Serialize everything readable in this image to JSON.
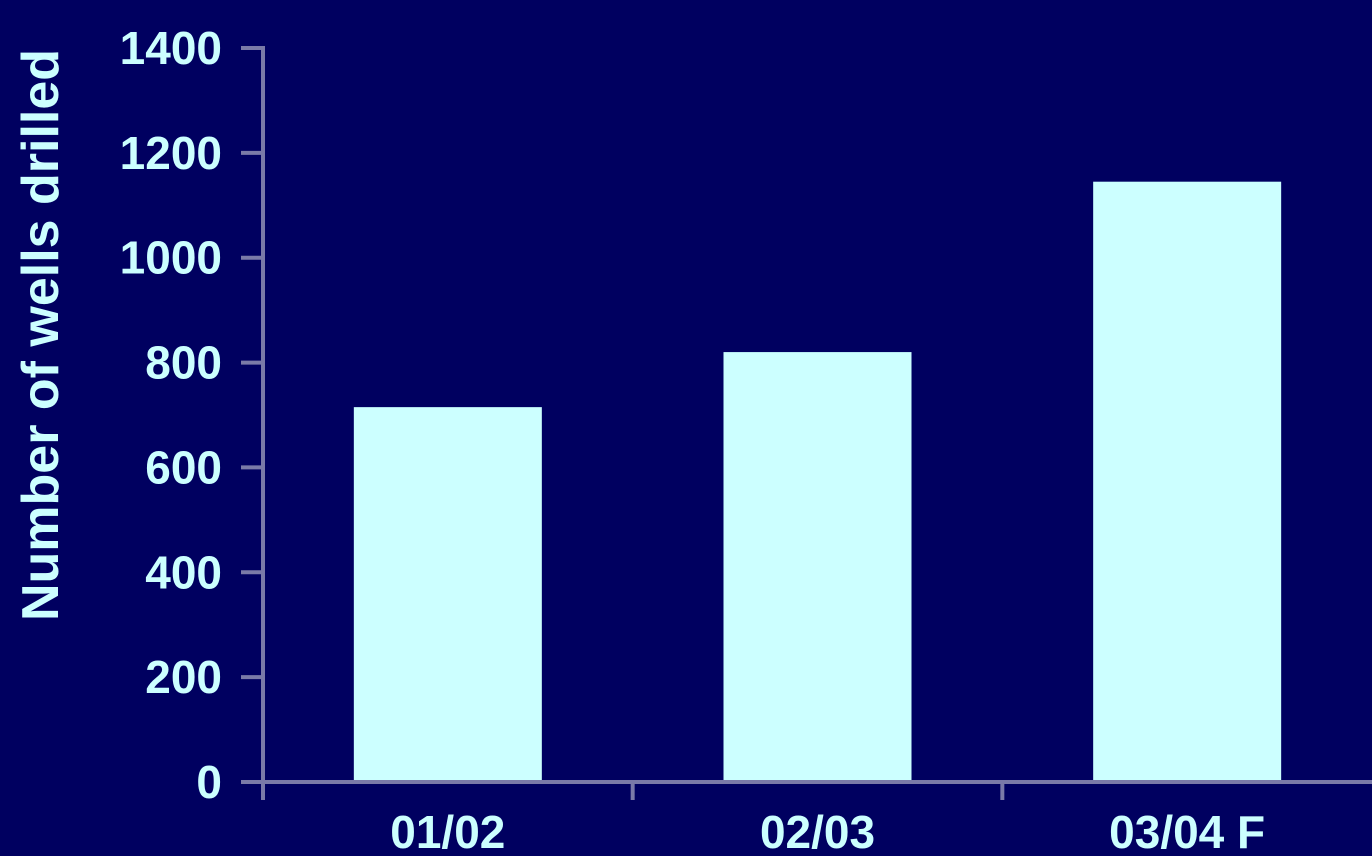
{
  "chart_data": {
    "type": "bar",
    "title": "",
    "xlabel": "",
    "ylabel": "Number of wells drilled",
    "categories": [
      "01/02",
      "02/03",
      "03/04 F"
    ],
    "values": [
      715,
      820,
      1145
    ],
    "ylim": [
      0,
      1400
    ],
    "yticks": [
      0,
      200,
      400,
      600,
      800,
      1000,
      1200,
      1400
    ],
    "grid": false,
    "legend": "none"
  },
  "colors": {
    "background": "#000060",
    "bar": "#CCFFFF",
    "text": "#CCFFFF",
    "axis": "#7A7AA8"
  }
}
